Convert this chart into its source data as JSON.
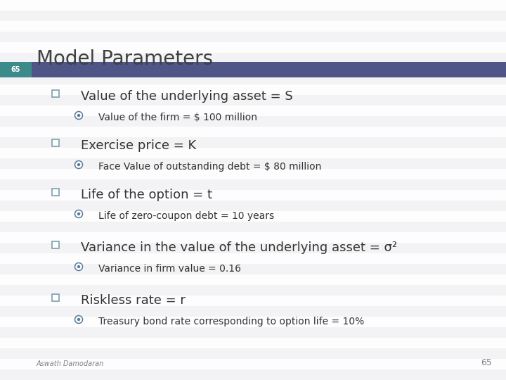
{
  "title": "Model Parameters",
  "slide_number": "65",
  "header_bar_color": "#4f5586",
  "header_tag_color": "#3d8a8a",
  "title_color": "#404040",
  "bullet_color": "#333333",
  "sub_bullet_color": "#333333",
  "bullet_marker_color": "#7a9fad",
  "sub_marker_color": "#5a7a9a",
  "slide_num_color": "#808080",
  "footer_color": "#808080",
  "footer_text": "Aswath Damodaran",
  "stripe_color": "#e8e8ec",
  "bg_color": "#f2f2f4",
  "bullets": [
    {
      "main": "Value of the underlying asset = S",
      "sub": "Value of the firm = $ 100 million"
    },
    {
      "main": "Exercise price = K",
      "sub": "Face Value of outstanding debt = $ 80 million"
    },
    {
      "main": "Life of the option = t",
      "sub": "Life of zero-coupon debt = 10 years"
    },
    {
      "main": "Variance in the value of the underlying asset = σ²",
      "sub": "Variance in firm value = 0.16"
    },
    {
      "main": "Riskless rate = r",
      "sub": "Treasury bond rate corresponding to option life = 10%"
    }
  ]
}
